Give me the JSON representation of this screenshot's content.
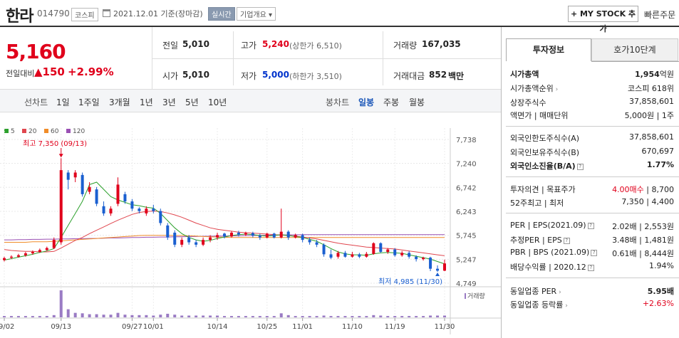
{
  "header": {
    "name": "한라",
    "code": "014790",
    "market": "코스피",
    "date": "2021.12.01 기준(장마감)",
    "realtime": "실시간",
    "company_btn": "기업개요 ▾",
    "mystock": "+ MY STOCK 추가",
    "quick_order": "빠른주문"
  },
  "price": {
    "current": "5,160",
    "change_label": "전일대비",
    "change": "▲150",
    "change_pct": "+2.99%"
  },
  "stats": {
    "prev_label": "전일",
    "prev": "5,010",
    "high_label": "고가",
    "high": "5,240",
    "upper_limit": "(상한가 6,510)",
    "volume_label": "거래량",
    "volume": "167,035",
    "open_label": "시가",
    "open": "5,010",
    "low_label": "저가",
    "low": "5,000",
    "lower_limit": "(하한가 3,510)",
    "amount_label": "거래대금",
    "amount": "852",
    "amount_unit": "백만"
  },
  "toolbar": {
    "line_label": "선차트",
    "periods": [
      "1일",
      "1주일",
      "3개월",
      "1년",
      "3년",
      "5년",
      "10년"
    ],
    "candle_label": "봉차트",
    "candles": [
      "일봉",
      "주봉",
      "월봉"
    ]
  },
  "legend": [
    {
      "label": "5",
      "color": "#2ca02c"
    },
    {
      "label": "20",
      "color": "#e0464e"
    },
    {
      "label": "60",
      "color": "#f08c28"
    },
    {
      "label": "120",
      "color": "#9a50b4"
    }
  ],
  "chart_labels": {
    "max": "최고 7,350 (09/13)",
    "min": "최저 4,985 (11/30)",
    "volume": "거래량"
  },
  "chart_data": {
    "type": "candlestick",
    "y_ticks": [
      "7,738",
      "7,240",
      "6,742",
      "6,243",
      "5,745",
      "5,247",
      "4,749"
    ],
    "ylim": [
      4749,
      7738
    ],
    "x_ticks": [
      "09/02",
      "09/13",
      "09/27",
      "10/01",
      "10/14",
      "10/25",
      "11/01",
      "11/10",
      "11/19",
      "11/30"
    ],
    "candles": [
      {
        "o": 5230,
        "c": 5270,
        "h": 5300,
        "l": 5200,
        "v": 3
      },
      {
        "o": 5280,
        "c": 5300,
        "h": 5330,
        "l": 5250,
        "v": 3
      },
      {
        "o": 5300,
        "c": 5330,
        "h": 5360,
        "l": 5280,
        "v": 3
      },
      {
        "o": 5330,
        "c": 5370,
        "h": 5400,
        "l": 5300,
        "v": 3
      },
      {
        "o": 5370,
        "c": 5400,
        "h": 5430,
        "l": 5340,
        "v": 3
      },
      {
        "o": 5400,
        "c": 5440,
        "h": 5470,
        "l": 5380,
        "v": 3
      },
      {
        "o": 5440,
        "c": 5480,
        "h": 5510,
        "l": 5420,
        "v": 3
      },
      {
        "o": 5480,
        "c": 5650,
        "h": 5700,
        "l": 5460,
        "v": 5
      },
      {
        "o": 5600,
        "c": 7100,
        "h": 7350,
        "l": 5550,
        "v": 60
      },
      {
        "o": 7050,
        "c": 6900,
        "h": 7100,
        "l": 6700,
        "v": 18
      },
      {
        "o": 6950,
        "c": 7050,
        "h": 7100,
        "l": 6850,
        "v": 10
      },
      {
        "o": 7000,
        "c": 6600,
        "h": 7050,
        "l": 6550,
        "v": 9
      },
      {
        "o": 6650,
        "c": 6750,
        "h": 6850,
        "l": 6600,
        "v": 7
      },
      {
        "o": 6700,
        "c": 6400,
        "h": 6750,
        "l": 6350,
        "v": 7
      },
      {
        "o": 6350,
        "c": 6200,
        "h": 6450,
        "l": 6150,
        "v": 6
      },
      {
        "o": 6200,
        "c": 6300,
        "h": 6350,
        "l": 6150,
        "v": 6
      },
      {
        "o": 6400,
        "c": 6800,
        "h": 6950,
        "l": 6350,
        "v": 10
      },
      {
        "o": 6600,
        "c": 6450,
        "h": 6650,
        "l": 6400,
        "v": 6
      },
      {
        "o": 6450,
        "c": 6300,
        "h": 6500,
        "l": 6250,
        "v": 5
      },
      {
        "o": 6300,
        "c": 6250,
        "h": 6330,
        "l": 6200,
        "v": 5
      },
      {
        "o": 6200,
        "c": 6300,
        "h": 6350,
        "l": 6150,
        "v": 5
      },
      {
        "o": 6300,
        "c": 6250,
        "h": 6380,
        "l": 6200,
        "v": 4
      },
      {
        "o": 6250,
        "c": 6000,
        "h": 6300,
        "l": 5950,
        "v": 6
      },
      {
        "o": 5950,
        "c": 5700,
        "h": 6000,
        "l": 5650,
        "v": 8
      },
      {
        "o": 5800,
        "c": 5550,
        "h": 5850,
        "l": 5500,
        "v": 6
      },
      {
        "o": 5550,
        "c": 5650,
        "h": 5700,
        "l": 5500,
        "v": 4
      },
      {
        "o": 5700,
        "c": 5600,
        "h": 5750,
        "l": 5550,
        "v": 4
      },
      {
        "o": 5600,
        "c": 5550,
        "h": 5650,
        "l": 5500,
        "v": 4
      },
      {
        "o": 5550,
        "c": 5650,
        "h": 5700,
        "l": 5520,
        "v": 4
      },
      {
        "o": 5650,
        "c": 5700,
        "h": 5750,
        "l": 5600,
        "v": 4
      },
      {
        "o": 5700,
        "c": 5750,
        "h": 5800,
        "l": 5650,
        "v": 4
      },
      {
        "o": 5780,
        "c": 5720,
        "h": 5800,
        "l": 5680,
        "v": 3
      },
      {
        "o": 5720,
        "c": 5800,
        "h": 5830,
        "l": 5700,
        "v": 3
      },
      {
        "o": 5800,
        "c": 5760,
        "h": 5840,
        "l": 5720,
        "v": 3
      },
      {
        "o": 5760,
        "c": 5790,
        "h": 5820,
        "l": 5730,
        "v": 3
      },
      {
        "o": 5790,
        "c": 5740,
        "h": 5820,
        "l": 5700,
        "v": 3
      },
      {
        "o": 5740,
        "c": 5700,
        "h": 5780,
        "l": 5650,
        "v": 3
      },
      {
        "o": 5700,
        "c": 5780,
        "h": 5800,
        "l": 5680,
        "v": 3
      },
      {
        "o": 5780,
        "c": 5700,
        "h": 5800,
        "l": 5680,
        "v": 3
      },
      {
        "o": 5700,
        "c": 5820,
        "h": 6300,
        "l": 5680,
        "v": 9
      },
      {
        "o": 5820,
        "c": 5700,
        "h": 5850,
        "l": 5650,
        "v": 5
      },
      {
        "o": 5700,
        "c": 5750,
        "h": 5780,
        "l": 5680,
        "v": 3
      },
      {
        "o": 5750,
        "c": 5650,
        "h": 5780,
        "l": 5600,
        "v": 3
      },
      {
        "o": 5650,
        "c": 5600,
        "h": 5700,
        "l": 5550,
        "v": 3
      },
      {
        "o": 5600,
        "c": 5550,
        "h": 5650,
        "l": 5500,
        "v": 3
      },
      {
        "o": 5550,
        "c": 5350,
        "h": 5580,
        "l": 5300,
        "v": 4
      },
      {
        "o": 5350,
        "c": 5280,
        "h": 5450,
        "l": 5250,
        "v": 3
      },
      {
        "o": 5300,
        "c": 5380,
        "h": 5420,
        "l": 5260,
        "v": 3
      },
      {
        "o": 5380,
        "c": 5300,
        "h": 5420,
        "l": 5280,
        "v": 3
      },
      {
        "o": 5300,
        "c": 5350,
        "h": 5400,
        "l": 5280,
        "v": 3
      },
      {
        "o": 5350,
        "c": 5300,
        "h": 5380,
        "l": 5270,
        "v": 3
      },
      {
        "o": 5300,
        "c": 5360,
        "h": 5400,
        "l": 5280,
        "v": 3
      },
      {
        "o": 5360,
        "c": 5580,
        "h": 5600,
        "l": 5340,
        "v": 5
      },
      {
        "o": 5580,
        "c": 5400,
        "h": 5600,
        "l": 5380,
        "v": 4
      },
      {
        "o": 5400,
        "c": 5450,
        "h": 5480,
        "l": 5360,
        "v": 3
      },
      {
        "o": 5450,
        "c": 5330,
        "h": 5480,
        "l": 5300,
        "v": 3
      },
      {
        "o": 5330,
        "c": 5380,
        "h": 5420,
        "l": 5300,
        "v": 3
      },
      {
        "o": 5380,
        "c": 5300,
        "h": 5420,
        "l": 5260,
        "v": 3
      },
      {
        "o": 5300,
        "c": 5250,
        "h": 5330,
        "l": 5200,
        "v": 3
      },
      {
        "o": 5250,
        "c": 5280,
        "h": 5300,
        "l": 5220,
        "v": 3
      },
      {
        "o": 5280,
        "c": 5050,
        "h": 5300,
        "l": 5000,
        "v": 4
      },
      {
        "o": 5050,
        "c": 5010,
        "h": 5120,
        "l": 4985,
        "v": 4
      },
      {
        "o": 5010,
        "c": 5160,
        "h": 5240,
        "l": 5000,
        "v": 4
      }
    ],
    "ma": {
      "ma5": [
        5230,
        5260,
        5290,
        5320,
        5350,
        5390,
        5420,
        5470,
        5700,
        5950,
        6200,
        6450,
        6800,
        6850,
        6700,
        6550,
        6480,
        6430,
        6380,
        6360,
        6330,
        6310,
        6200,
        6050,
        5900,
        5780,
        5700,
        5650,
        5620,
        5640,
        5680,
        5710,
        5740,
        5760,
        5770,
        5760,
        5740,
        5730,
        5740,
        5760,
        5740,
        5720,
        5700,
        5660,
        5620,
        5550,
        5470,
        5400,
        5360,
        5340,
        5340,
        5330,
        5360,
        5380,
        5390,
        5380,
        5370,
        5340,
        5310,
        5280,
        5250,
        5200,
        5150
      ],
      "ma20": [
        5450,
        5430,
        5420,
        5410,
        5410,
        5400,
        5400,
        5410,
        5480,
        5560,
        5640,
        5700,
        5780,
        5850,
        5920,
        5990,
        6060,
        6120,
        6180,
        6220,
        6240,
        6250,
        6240,
        6210,
        6170,
        6120,
        6060,
        6000,
        5950,
        5900,
        5870,
        5850,
        5830,
        5810,
        5800,
        5790,
        5780,
        5770,
        5760,
        5750,
        5740,
        5730,
        5710,
        5690,
        5670,
        5640,
        5610,
        5580,
        5560,
        5540,
        5520,
        5500,
        5490,
        5480,
        5470,
        5460,
        5440,
        5420,
        5400,
        5380,
        5360,
        5340,
        5320
      ],
      "ma60": [
        5600,
        5600,
        5600,
        5600,
        5610,
        5610,
        5610,
        5620,
        5630,
        5640,
        5650,
        5660,
        5670,
        5680,
        5690,
        5700,
        5710,
        5720,
        5730,
        5740,
        5745,
        5745,
        5745,
        5745,
        5740,
        5740,
        5735,
        5730,
        5720,
        5715,
        5710,
        5705,
        5700,
        5700,
        5700,
        5700,
        5700,
        5700,
        5700,
        5700,
        5700,
        5700,
        5700,
        5700,
        5700,
        5700,
        5700,
        5700,
        5700,
        5700,
        5700,
        5700,
        5700,
        5700,
        5700,
        5700,
        5700,
        5700,
        5700,
        5700,
        5700,
        5700,
        5700
      ],
      "ma120": [
        5650,
        5650,
        5655,
        5655,
        5660,
        5660,
        5665,
        5665,
        5670,
        5670,
        5675,
        5675,
        5680,
        5680,
        5685,
        5690,
        5690,
        5695,
        5700,
        5700,
        5705,
        5705,
        5710,
        5710,
        5715,
        5715,
        5720,
        5720,
        5725,
        5725,
        5730,
        5730,
        5735,
        5735,
        5740,
        5740,
        5745,
        5745,
        5750,
        5750,
        5755,
        5755,
        5760,
        5760,
        5760,
        5760,
        5760,
        5760,
        5760,
        5760,
        5760,
        5760,
        5760,
        5760,
        5760,
        5760,
        5760,
        5760,
        5760,
        5760,
        5760,
        5760,
        5760
      ]
    }
  },
  "right_panel": {
    "tab_invest": "투자정보",
    "tab_hoga": "호가10단계",
    "rows1": [
      {
        "label": "시가총액",
        "value": "1,954",
        "unit": "억원"
      },
      {
        "label": "시가총액순위",
        "value": "코스피 618위"
      },
      {
        "label": "상장주식수",
        "value": "37,858,601"
      },
      {
        "label": "액면가 | 매매단위",
        "value": "5,000원 | 1주"
      }
    ],
    "rows2": [
      {
        "label": "외국인한도주식수(A)",
        "value": "37,858,601"
      },
      {
        "label": "외국인보유주식수(B)",
        "value": "670,697"
      },
      {
        "label": "외국인소진율(B/A)",
        "value": "1.77%"
      }
    ],
    "rows3": [
      {
        "label": "투자의견 | 목표주가",
        "value_a": "4.00매수",
        "value_b": "8,700"
      },
      {
        "label": "52주최고 | 최저",
        "value": "7,350 | 4,400"
      }
    ],
    "rows4": [
      {
        "label": "PER | EPS(2021.09)",
        "value": "2.02배 | 2,553원"
      },
      {
        "label": "추정PER | EPS",
        "value": "3.48배 | 1,481원"
      },
      {
        "label": "PBR | BPS (2021.09)",
        "value": "0.61배 | 8,444원"
      },
      {
        "label": "배당수익률 | 2020.12",
        "value": "1.94%"
      }
    ],
    "rows5": [
      {
        "label": "동일업종 PER",
        "value": "5.95배"
      },
      {
        "label": "동일업종 등락률",
        "value": "+2.63%"
      }
    ]
  }
}
